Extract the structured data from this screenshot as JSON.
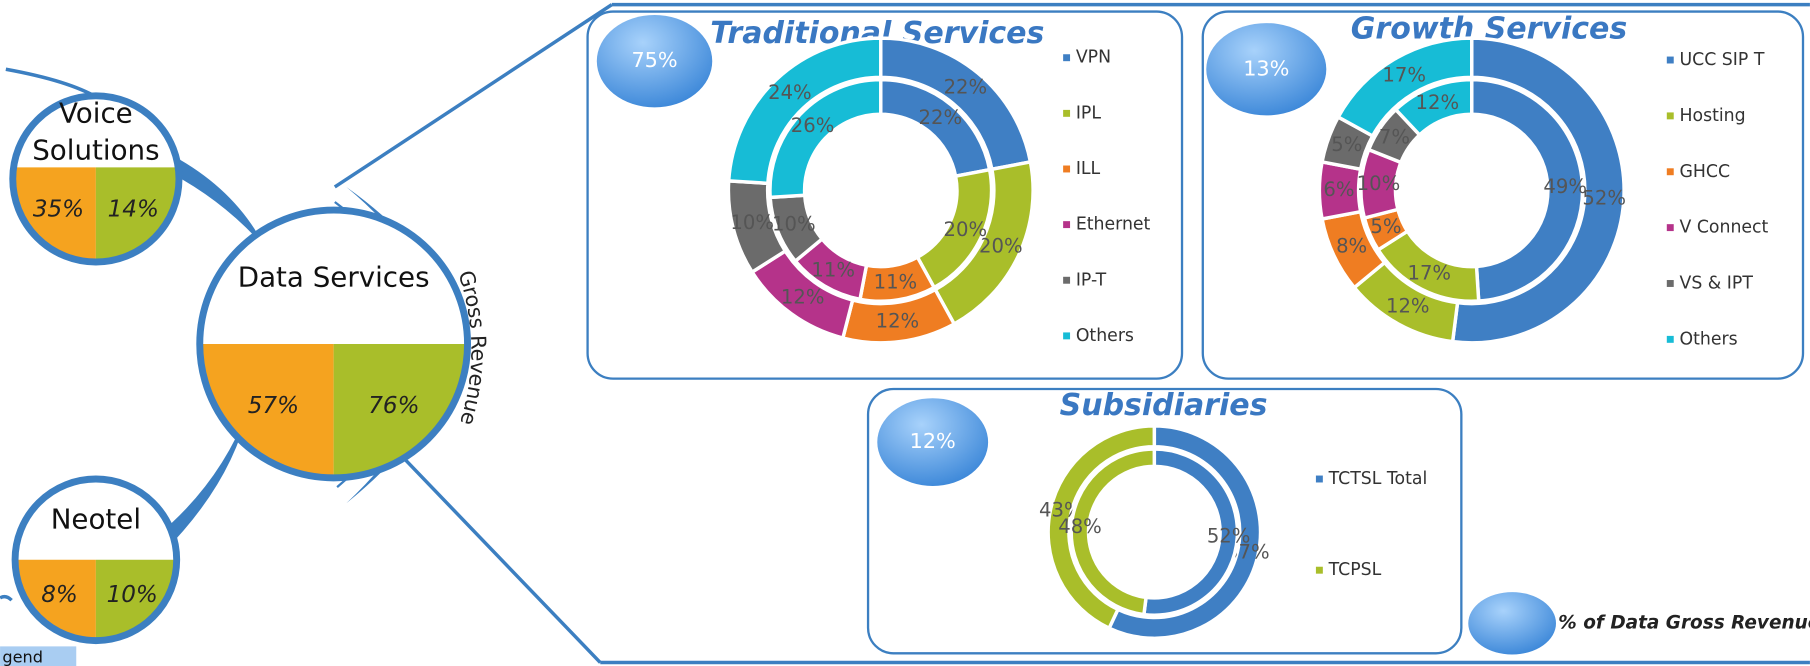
{
  "segments": [
    {
      "label": "Voice Solutions",
      "left": "35%",
      "right": "14%"
    },
    {
      "label": "Data Services",
      "left": "57%",
      "right": "76%"
    },
    {
      "label": "Neotel",
      "left": "8%",
      "right": "10%"
    }
  ],
  "arc_label": "Gross Revenue",
  "chart_data": [
    {
      "type": "donut",
      "title": "Traditional Services",
      "badge": "75%",
      "categories": [
        "VPN",
        "IPL",
        "ILL",
        "Ethernet",
        "IP-T",
        "Others"
      ],
      "colors": [
        "#3f7fc4",
        "#a9be2a",
        "#ef7d22",
        "#b5338a",
        "#6b6b6b",
        "#17bcd6"
      ],
      "series": [
        {
          "values": [
            22,
            20,
            12,
            12,
            10,
            24
          ],
          "value_labels": [
            "22%",
            "20%",
            "12%",
            "12%",
            "10%",
            "24%"
          ]
        },
        {
          "values": [
            22,
            20,
            11,
            11,
            10,
            26
          ],
          "value_labels": [
            "22%",
            "20%",
            "11%",
            "11%",
            "10%",
            "26%"
          ]
        }
      ]
    },
    {
      "type": "donut",
      "title": "Growth Services",
      "badge": "13%",
      "categories": [
        "UCC SIP T",
        "Hosting",
        "GHCC",
        "V Connect",
        "VS & IPT",
        "Others"
      ],
      "colors": [
        "#3f7fc4",
        "#a9be2a",
        "#ef7d22",
        "#b5338a",
        "#6b6b6b",
        "#17bcd6"
      ],
      "series": [
        {
          "values": [
            52,
            12,
            8,
            6,
            5,
            17
          ],
          "value_labels": [
            "52%",
            "12%",
            "8%",
            "6%",
            "5%",
            "17%"
          ]
        },
        {
          "values": [
            49,
            17,
            5,
            10,
            7,
            12
          ],
          "value_labels": [
            "49%",
            "17%",
            "5%",
            "10%",
            "7%",
            "12%"
          ]
        }
      ]
    },
    {
      "type": "donut",
      "title": "Subsidiaries",
      "badge": "12%",
      "categories": [
        "TCTSL Total",
        "TCPSL"
      ],
      "colors": [
        "#3f7fc4",
        "#a9be2a"
      ],
      "series": [
        {
          "values": [
            57,
            43
          ],
          "value_labels": [
            "57%",
            "43%"
          ]
        },
        {
          "values": [
            52,
            48
          ],
          "value_labels": [
            "52%",
            "48%"
          ]
        }
      ]
    }
  ],
  "legend": {
    "title": "gend",
    "note": "% of Data Gross Revenue"
  }
}
